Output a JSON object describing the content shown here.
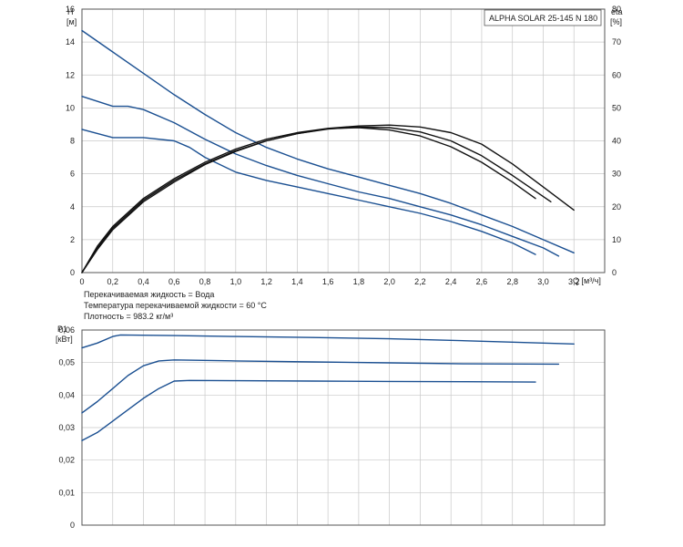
{
  "model_label": "ALPHA SOLAR 25-145 N 180",
  "notes": {
    "liquid": "Перекачиваемая жидкость = Вода",
    "temperature": "Температура перекачиваемой жидкости = 60 °C",
    "density": "Плотность = 983.2 кг/м³"
  },
  "chart_data": [
    {
      "type": "line",
      "y_axis_label": "H",
      "y_axis_unit": "[м]",
      "y2_axis_label": "eta",
      "y2_axis_unit": "[%]",
      "x_axis_label": "Q [м³/ч]",
      "xlim": [
        0,
        3.4
      ],
      "x_ticks": [
        "0",
        "0,2",
        "0,4",
        "0,6",
        "0,8",
        "1,0",
        "1,2",
        "1,4",
        "1,6",
        "1,8",
        "2,0",
        "2,2",
        "2,4",
        "2,6",
        "2,8",
        "3,0",
        "3,2"
      ],
      "ylim": [
        0,
        16
      ],
      "y_ticks": [
        "0",
        "2",
        "4",
        "6",
        "8",
        "10",
        "12",
        "14",
        "16"
      ],
      "y2lim": [
        0,
        80
      ],
      "y2_ticks": [
        "0",
        "10",
        "20",
        "30",
        "40",
        "50",
        "60",
        "70",
        "80"
      ],
      "grid": true,
      "series": [
        {
          "axis": "left",
          "color": "#1a4f91",
          "points": [
            [
              0,
              14.7
            ],
            [
              0.2,
              13.4
            ],
            [
              0.4,
              12.1
            ],
            [
              0.6,
              10.8
            ],
            [
              0.8,
              9.6
            ],
            [
              1.0,
              8.5
            ],
            [
              1.2,
              7.6
            ],
            [
              1.4,
              6.9
            ],
            [
              1.6,
              6.3
            ],
            [
              1.8,
              5.8
            ],
            [
              2.0,
              5.3
            ],
            [
              2.2,
              4.8
            ],
            [
              2.4,
              4.2
            ],
            [
              2.6,
              3.5
            ],
            [
              2.8,
              2.8
            ],
            [
              3.0,
              2.0
            ],
            [
              3.2,
              1.2
            ]
          ]
        },
        {
          "axis": "left",
          "color": "#1a4f91",
          "points": [
            [
              0,
              10.7
            ],
            [
              0.2,
              10.1
            ],
            [
              0.3,
              10.1
            ],
            [
              0.4,
              9.9
            ],
            [
              0.6,
              9.1
            ],
            [
              0.8,
              8.1
            ],
            [
              1.0,
              7.2
            ],
            [
              1.2,
              6.5
            ],
            [
              1.4,
              5.9
            ],
            [
              1.6,
              5.4
            ],
            [
              1.8,
              4.9
            ],
            [
              2.0,
              4.5
            ],
            [
              2.2,
              4.0
            ],
            [
              2.4,
              3.5
            ],
            [
              2.6,
              2.9
            ],
            [
              2.8,
              2.2
            ],
            [
              3.0,
              1.5
            ],
            [
              3.1,
              1.0
            ]
          ]
        },
        {
          "axis": "left",
          "color": "#1a4f91",
          "points": [
            [
              0,
              8.7
            ],
            [
              0.2,
              8.2
            ],
            [
              0.4,
              8.2
            ],
            [
              0.6,
              8.0
            ],
            [
              0.7,
              7.6
            ],
            [
              0.8,
              7.0
            ],
            [
              1.0,
              6.1
            ],
            [
              1.2,
              5.6
            ],
            [
              1.4,
              5.2
            ],
            [
              1.6,
              4.8
            ],
            [
              1.8,
              4.4
            ],
            [
              2.0,
              4.0
            ],
            [
              2.2,
              3.6
            ],
            [
              2.4,
              3.1
            ],
            [
              2.6,
              2.5
            ],
            [
              2.8,
              1.8
            ],
            [
              2.95,
              1.1
            ]
          ]
        },
        {
          "axis": "right",
          "color": "#111111",
          "points": [
            [
              0,
              0
            ],
            [
              0.1,
              8
            ],
            [
              0.2,
              14
            ],
            [
              0.4,
              22.5
            ],
            [
              0.6,
              28.5
            ],
            [
              0.8,
              33.5
            ],
            [
              1.0,
              37.5
            ],
            [
              1.2,
              40.5
            ],
            [
              1.4,
              42.5
            ],
            [
              1.6,
              43.8
            ],
            [
              1.8,
              44.5
            ],
            [
              2.0,
              44.8
            ],
            [
              2.2,
              44.2
            ],
            [
              2.4,
              42.5
            ],
            [
              2.6,
              39
            ],
            [
              2.8,
              33
            ],
            [
              3.0,
              26
            ],
            [
              3.2,
              19
            ]
          ]
        },
        {
          "axis": "right",
          "color": "#111111",
          "points": [
            [
              0,
              0
            ],
            [
              0.1,
              7.5
            ],
            [
              0.2,
              13.5
            ],
            [
              0.4,
              22
            ],
            [
              0.6,
              28
            ],
            [
              0.8,
              33
            ],
            [
              1.0,
              37
            ],
            [
              1.2,
              40
            ],
            [
              1.4,
              42.2
            ],
            [
              1.6,
              43.6
            ],
            [
              1.8,
              44.2
            ],
            [
              2.0,
              44
            ],
            [
              2.2,
              42.7
            ],
            [
              2.4,
              40
            ],
            [
              2.6,
              35.5
            ],
            [
              2.8,
              29.5
            ],
            [
              3.05,
              21.5
            ]
          ]
        },
        {
          "axis": "right",
          "color": "#111111",
          "points": [
            [
              0,
              0
            ],
            [
              0.1,
              7
            ],
            [
              0.2,
              13
            ],
            [
              0.4,
              21.5
            ],
            [
              0.6,
              27.5
            ],
            [
              0.8,
              32.8
            ],
            [
              1.0,
              36.8
            ],
            [
              1.2,
              40
            ],
            [
              1.4,
              42.2
            ],
            [
              1.6,
              43.7
            ],
            [
              1.8,
              44
            ],
            [
              2.0,
              43.3
            ],
            [
              2.2,
              41.5
            ],
            [
              2.4,
              38.2
            ],
            [
              2.6,
              33.5
            ],
            [
              2.8,
              27.5
            ],
            [
              2.95,
              22.5
            ]
          ]
        }
      ]
    },
    {
      "type": "line",
      "y_axis_label": "P1",
      "y_axis_unit": "[кВт]",
      "xlim": [
        0,
        3.4
      ],
      "ylim": [
        0,
        0.06
      ],
      "y_ticks": [
        "0",
        "0,01",
        "0,02",
        "0,03",
        "0,04",
        "0,05",
        "0,06"
      ],
      "grid": true,
      "series": [
        {
          "color": "#1a4f91",
          "points": [
            [
              0,
              0.0545
            ],
            [
              0.1,
              0.056
            ],
            [
              0.2,
              0.058
            ],
            [
              0.25,
              0.0585
            ],
            [
              0.6,
              0.0583
            ],
            [
              1.0,
              0.058
            ],
            [
              1.5,
              0.0577
            ],
            [
              2.0,
              0.0573
            ],
            [
              2.5,
              0.0567
            ],
            [
              3.0,
              0.056
            ],
            [
              3.2,
              0.0557
            ]
          ]
        },
        {
          "color": "#1a4f91",
          "points": [
            [
              0,
              0.0345
            ],
            [
              0.1,
              0.038
            ],
            [
              0.2,
              0.042
            ],
            [
              0.3,
              0.046
            ],
            [
              0.4,
              0.049
            ],
            [
              0.5,
              0.0505
            ],
            [
              0.6,
              0.0508
            ],
            [
              1.0,
              0.0505
            ],
            [
              1.5,
              0.0502
            ],
            [
              2.0,
              0.0499
            ],
            [
              2.5,
              0.0496
            ],
            [
              3.1,
              0.0495
            ]
          ]
        },
        {
          "color": "#1a4f91",
          "points": [
            [
              0,
              0.026
            ],
            [
              0.1,
              0.0285
            ],
            [
              0.2,
              0.032
            ],
            [
              0.3,
              0.0355
            ],
            [
              0.4,
              0.039
            ],
            [
              0.5,
              0.042
            ],
            [
              0.6,
              0.0443
            ],
            [
              0.7,
              0.0445
            ],
            [
              1.0,
              0.0444
            ],
            [
              1.5,
              0.0443
            ],
            [
              2.0,
              0.0442
            ],
            [
              2.5,
              0.0441
            ],
            [
              2.95,
              0.044
            ]
          ]
        }
      ]
    }
  ]
}
